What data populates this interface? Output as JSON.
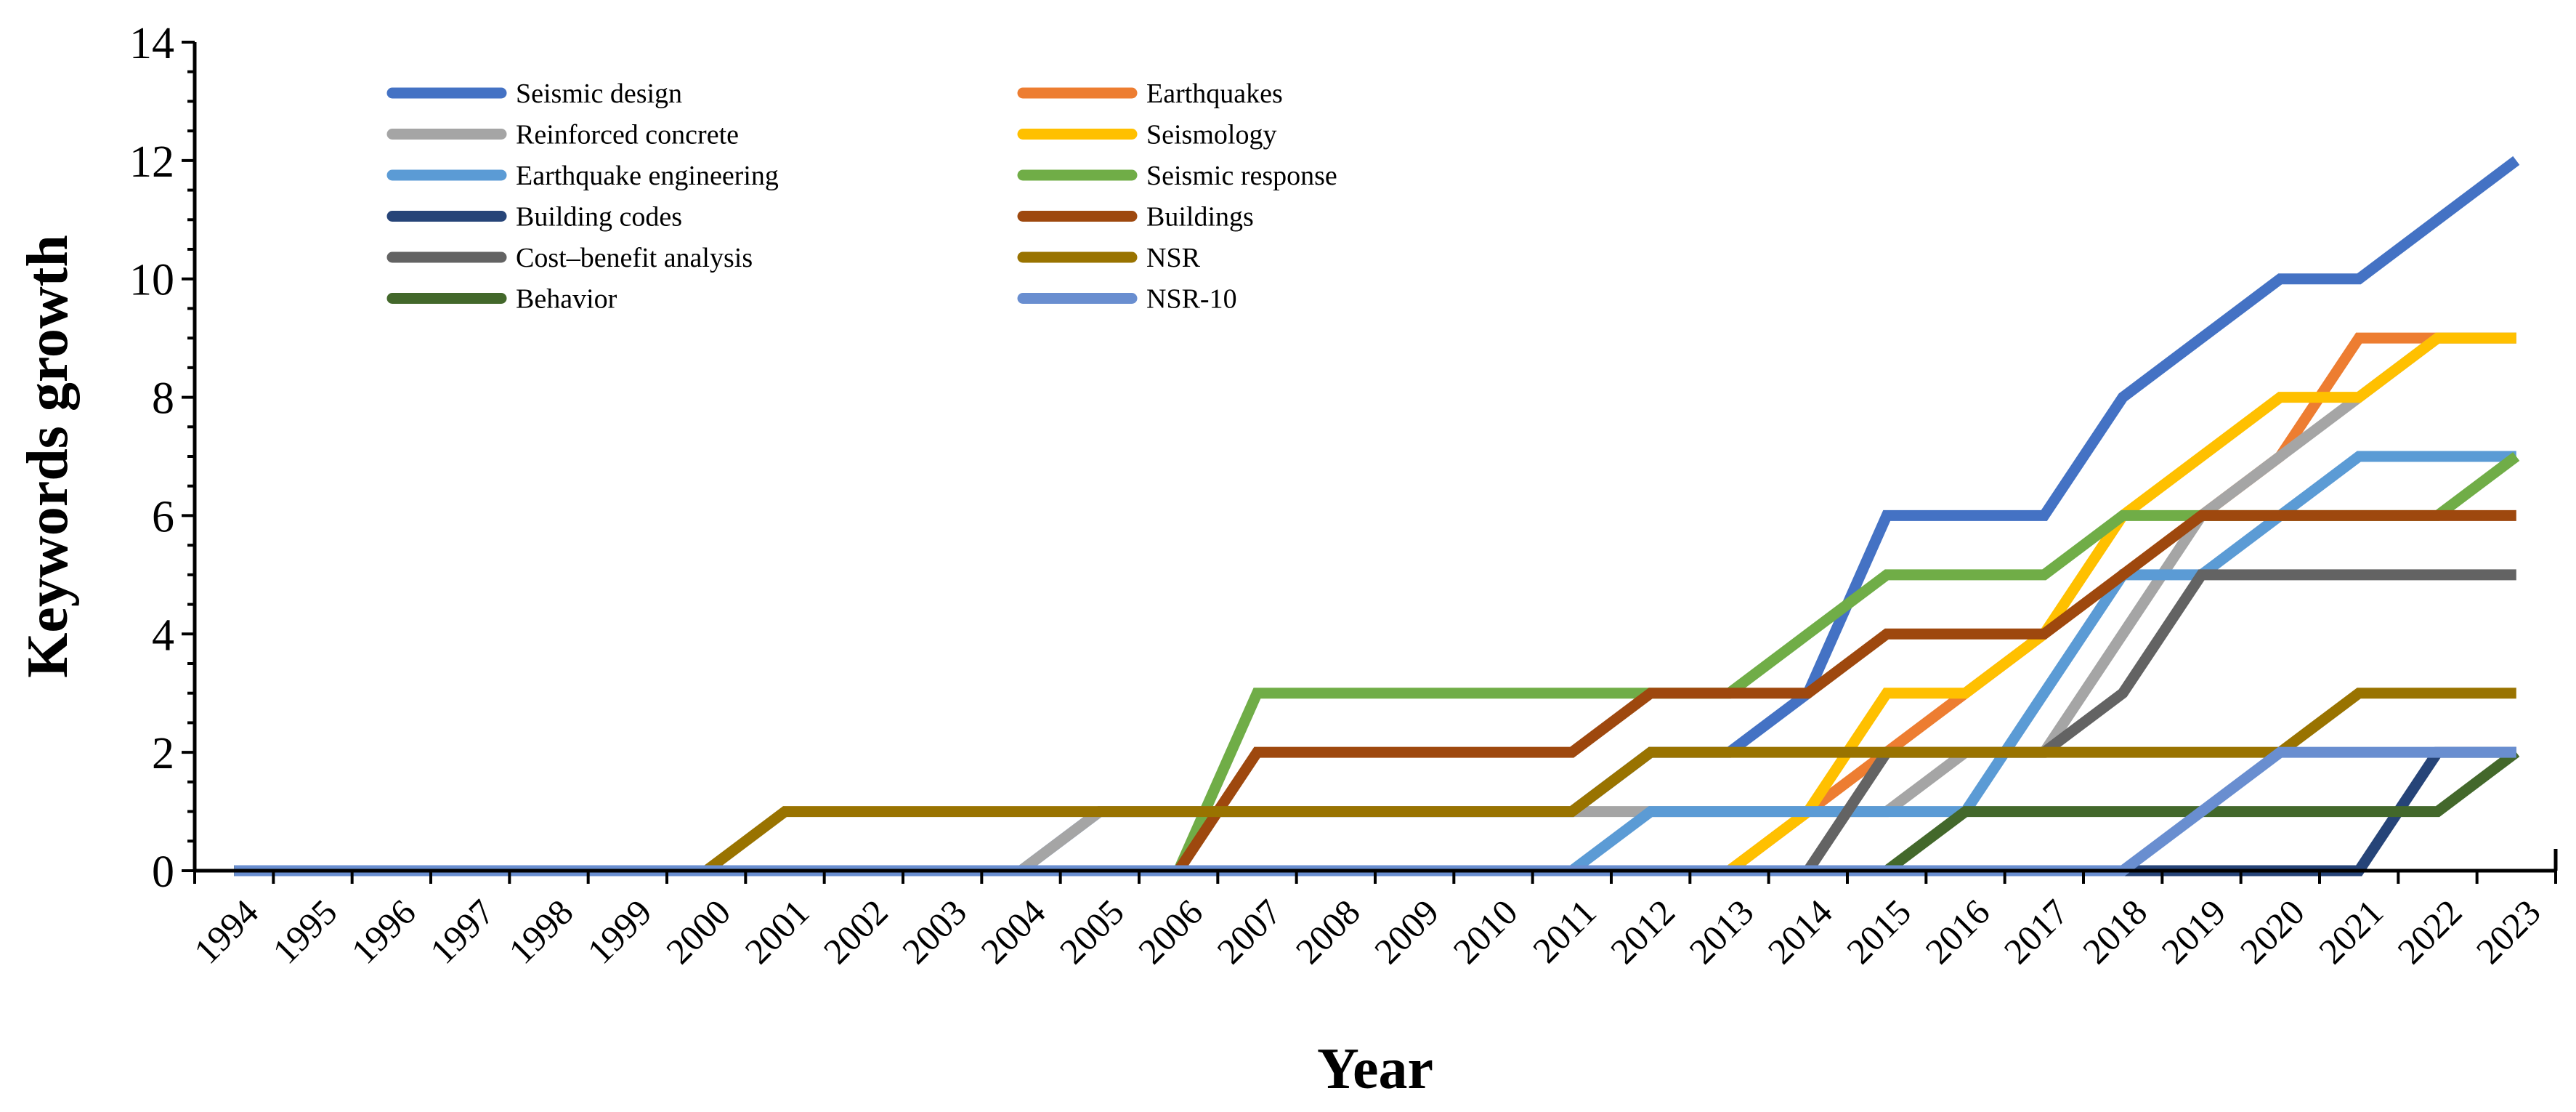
{
  "chart_data": {
    "type": "line",
    "title": "",
    "xlabel": "Year",
    "ylabel": "Keywords growth",
    "ylim": [
      0,
      14
    ],
    "y_major_step": 2,
    "y_minor_step": 0.5,
    "grid": false,
    "legend_position": "top-left, two columns",
    "categories": [
      "1994",
      "1995",
      "1996",
      "1997",
      "1998",
      "1999",
      "2000",
      "2001",
      "2002",
      "2003",
      "2004",
      "2005",
      "2006",
      "2007",
      "2008",
      "2009",
      "2010",
      "2011",
      "2012",
      "2013",
      "2014",
      "2015",
      "2016",
      "2017",
      "2018",
      "2019",
      "2020",
      "2021",
      "2022",
      "2023"
    ],
    "series": [
      {
        "name": "Seismic design",
        "color": "#4472C4",
        "values": [
          0,
          0,
          0,
          0,
          0,
          0,
          0,
          0,
          0,
          0,
          0,
          1,
          1,
          1,
          1,
          1,
          1,
          1,
          2,
          2,
          3,
          6,
          6,
          6,
          8,
          9,
          10,
          10,
          11,
          12
        ]
      },
      {
        "name": "Earthquakes",
        "color": "#ED7D31",
        "values": [
          0,
          0,
          0,
          0,
          0,
          0,
          0,
          0,
          0,
          0,
          0,
          0,
          0,
          0,
          0,
          0,
          0,
          0,
          0,
          0,
          1,
          2,
          3,
          4,
          5,
          6,
          7,
          9,
          9,
          9
        ]
      },
      {
        "name": "Reinforced concrete",
        "color": "#A5A5A5",
        "values": [
          0,
          0,
          0,
          0,
          0,
          0,
          0,
          0,
          0,
          0,
          0,
          1,
          1,
          1,
          1,
          1,
          1,
          1,
          1,
          1,
          1,
          1,
          2,
          2,
          4,
          6,
          7,
          8,
          9,
          9
        ]
      },
      {
        "name": "Seismology",
        "color": "#FFC000",
        "values": [
          0,
          0,
          0,
          0,
          0,
          0,
          0,
          0,
          0,
          0,
          0,
          0,
          0,
          0,
          0,
          0,
          0,
          0,
          0,
          0,
          1,
          3,
          3,
          4,
          6,
          7,
          8,
          8,
          9,
          9
        ]
      },
      {
        "name": "Earthquake engineering",
        "color": "#5B9BD5",
        "values": [
          0,
          0,
          0,
          0,
          0,
          0,
          0,
          0,
          0,
          0,
          0,
          0,
          0,
          0,
          0,
          0,
          0,
          0,
          1,
          1,
          1,
          1,
          1,
          3,
          5,
          5,
          6,
          7,
          7,
          7
        ]
      },
      {
        "name": "Seismic response",
        "color": "#70AD47",
        "values": [
          0,
          0,
          0,
          0,
          0,
          0,
          0,
          0,
          0,
          0,
          0,
          0,
          0,
          3,
          3,
          3,
          3,
          3,
          3,
          3,
          4,
          5,
          5,
          5,
          6,
          6,
          6,
          6,
          6,
          7
        ]
      },
      {
        "name": "Building codes",
        "color": "#264478",
        "values": [
          0,
          0,
          0,
          0,
          0,
          0,
          0,
          0,
          0,
          0,
          0,
          0,
          0,
          0,
          0,
          0,
          0,
          0,
          0,
          0,
          0,
          0,
          0,
          0,
          0,
          0,
          0,
          0,
          2,
          2
        ]
      },
      {
        "name": "Buildings",
        "color": "#9E480E",
        "values": [
          0,
          0,
          0,
          0,
          0,
          0,
          0,
          0,
          0,
          0,
          0,
          0,
          0,
          2,
          2,
          2,
          2,
          2,
          3,
          3,
          3,
          4,
          4,
          4,
          5,
          6,
          6,
          6,
          6,
          6
        ]
      },
      {
        "name": "Cost–benefit analysis",
        "color": "#636363",
        "values": [
          0,
          0,
          0,
          0,
          0,
          0,
          0,
          0,
          0,
          0,
          0,
          0,
          0,
          0,
          0,
          0,
          0,
          0,
          0,
          0,
          0,
          2,
          2,
          2,
          3,
          5,
          5,
          5,
          5,
          5
        ]
      },
      {
        "name": "NSR",
        "color": "#997300",
        "values": [
          0,
          0,
          0,
          0,
          0,
          0,
          0,
          1,
          1,
          1,
          1,
          1,
          1,
          1,
          1,
          1,
          1,
          1,
          2,
          2,
          2,
          2,
          2,
          2,
          2,
          2,
          2,
          3,
          3,
          3
        ]
      },
      {
        "name": "Behavior",
        "color": "#43682B",
        "values": [
          0,
          0,
          0,
          0,
          0,
          0,
          0,
          0,
          0,
          0,
          0,
          0,
          0,
          0,
          0,
          0,
          0,
          0,
          0,
          0,
          0,
          0,
          1,
          1,
          1,
          1,
          1,
          1,
          1,
          2
        ]
      },
      {
        "name": "NSR-10",
        "color": "#698ED0",
        "values": [
          0,
          0,
          0,
          0,
          0,
          0,
          0,
          0,
          0,
          0,
          0,
          0,
          0,
          0,
          0,
          0,
          0,
          0,
          0,
          0,
          0,
          0,
          0,
          0,
          0,
          1,
          2,
          2,
          2,
          2
        ]
      }
    ]
  }
}
